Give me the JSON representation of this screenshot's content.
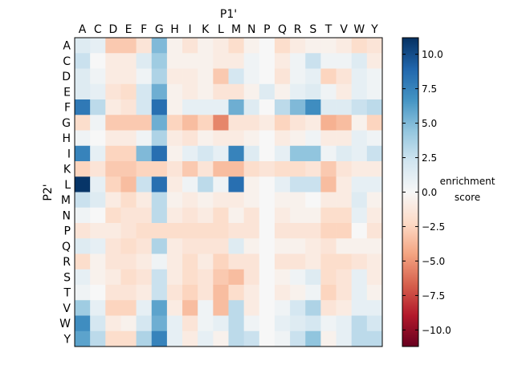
{
  "chart_data": {
    "type": "heatmap",
    "xlabel": "P1'",
    "ylabel": "P2'",
    "x_categories": [
      "A",
      "C",
      "D",
      "E",
      "F",
      "G",
      "H",
      "I",
      "K",
      "L",
      "M",
      "N",
      "P",
      "Q",
      "R",
      "S",
      "T",
      "V",
      "W",
      "Y"
    ],
    "y_categories": [
      "A",
      "C",
      "D",
      "E",
      "F",
      "G",
      "H",
      "I",
      "K",
      "L",
      "M",
      "N",
      "P",
      "Q",
      "R",
      "S",
      "T",
      "V",
      "W",
      "Y"
    ],
    "values": [
      [
        1.5,
        1.0,
        -3.0,
        -3.0,
        -1.5,
        5.0,
        -0.5,
        -1.5,
        -0.5,
        -1.0,
        -2.0,
        -0.5,
        0.0,
        -2.0,
        -1.0,
        -0.5,
        -0.5,
        -1.0,
        -2.0,
        -1.5
      ],
      [
        2.5,
        0.0,
        -1.0,
        -1.0,
        1.5,
        4.0,
        -0.5,
        -0.5,
        -0.5,
        -1.0,
        -1.0,
        0.5,
        0.0,
        -1.0,
        0.5,
        2.5,
        0.5,
        0.5,
        1.5,
        -1.0
      ],
      [
        1.5,
        0.5,
        -1.0,
        -1.0,
        0.5,
        3.5,
        -1.0,
        -1.0,
        -0.5,
        -3.0,
        2.0,
        0.5,
        0.0,
        -1.5,
        0.5,
        1.0,
        -2.5,
        -1.5,
        1.0,
        0.5
      ],
      [
        1.5,
        1.0,
        -1.5,
        -2.0,
        2.0,
        5.5,
        -0.5,
        -1.0,
        -0.5,
        -1.5,
        -1.5,
        -0.5,
        1.5,
        -0.5,
        1.0,
        1.5,
        0.5,
        -1.0,
        1.0,
        0.5
      ],
      [
        8.0,
        3.0,
        -1.0,
        -1.5,
        2.0,
        8.5,
        -0.5,
        1.0,
        1.0,
        1.0,
        5.5,
        1.5,
        0.0,
        3.0,
        5.0,
        7.0,
        1.5,
        1.5,
        2.5,
        3.0
      ],
      [
        -2.0,
        0.5,
        -3.0,
        -3.0,
        -3.0,
        5.5,
        -2.5,
        -3.5,
        -2.5,
        -5.5,
        -1.5,
        -1.5,
        -1.0,
        -2.5,
        -1.5,
        -1.0,
        -4.0,
        -3.5,
        -0.5,
        -2.5
      ],
      [
        0.5,
        0.0,
        -1.0,
        -1.0,
        0.5,
        3.5,
        -1.0,
        -1.5,
        -0.5,
        -1.0,
        -1.0,
        -0.5,
        0.0,
        -1.0,
        -0.5,
        0.5,
        -1.0,
        -1.0,
        1.0,
        0.5
      ],
      [
        7.5,
        1.0,
        -2.5,
        -2.5,
        5.0,
        8.5,
        -0.5,
        1.0,
        2.0,
        1.0,
        7.5,
        1.5,
        0.0,
        1.0,
        4.5,
        4.5,
        0.5,
        1.5,
        1.0,
        2.5
      ],
      [
        -2.5,
        -1.5,
        -3.0,
        -3.0,
        -2.5,
        -2.5,
        -1.5,
        -3.0,
        -1.5,
        -3.5,
        -3.5,
        -2.0,
        -1.5,
        -2.0,
        -2.0,
        -1.5,
        -3.0,
        -1.5,
        -1.0,
        -1.0
      ],
      [
        11.0,
        1.0,
        -2.5,
        -3.5,
        2.5,
        8.5,
        -1.0,
        0.5,
        3.0,
        0.5,
        8.5,
        -0.5,
        0.0,
        1.0,
        2.5,
        2.5,
        -3.5,
        -1.0,
        1.0,
        1.0
      ],
      [
        2.5,
        1.5,
        -1.0,
        -2.0,
        -1.0,
        3.0,
        -0.5,
        -1.0,
        -0.5,
        -1.0,
        -1.0,
        -0.5,
        0.0,
        -0.5,
        -0.5,
        0.0,
        -1.0,
        -1.0,
        1.5,
        -0.5
      ],
      [
        0.5,
        0.0,
        -2.0,
        -1.5,
        -1.5,
        3.0,
        -1.0,
        -1.5,
        -1.0,
        -2.0,
        -0.5,
        -1.5,
        0.0,
        -1.0,
        -0.5,
        -0.5,
        -2.0,
        -2.0,
        1.0,
        -1.0
      ],
      [
        -1.5,
        -1.0,
        -1.0,
        -1.5,
        -2.0,
        -2.0,
        -2.0,
        -2.0,
        -2.0,
        -2.0,
        -1.5,
        -1.5,
        0.0,
        -1.5,
        -1.5,
        -1.5,
        -2.5,
        -2.5,
        0.0,
        -1.5
      ],
      [
        1.5,
        1.0,
        -1.5,
        -2.0,
        -1.5,
        3.5,
        -1.0,
        -1.5,
        -1.5,
        -1.5,
        1.5,
        -0.5,
        0.0,
        -0.5,
        -0.5,
        -1.0,
        -1.5,
        -0.5,
        -0.5,
        -0.5
      ],
      [
        -2.0,
        -0.5,
        -1.5,
        -1.5,
        -1.0,
        0.5,
        -1.0,
        -2.0,
        -1.0,
        -2.5,
        -1.5,
        -1.5,
        0.0,
        -1.5,
        -1.5,
        -1.0,
        -2.0,
        -2.0,
        -1.5,
        -1.0
      ],
      [
        1.0,
        -0.5,
        -1.0,
        -2.0,
        -1.5,
        2.5,
        -1.0,
        -2.0,
        -1.5,
        -3.0,
        -3.5,
        -1.5,
        0.0,
        -0.5,
        0.5,
        1.5,
        -2.0,
        -1.5,
        1.0,
        -1.0
      ],
      [
        0.5,
        0.0,
        -1.5,
        -1.5,
        -1.0,
        2.5,
        -1.5,
        -2.5,
        -1.5,
        -3.5,
        -2.0,
        -1.0,
        0.0,
        -1.0,
        -0.5,
        0.5,
        -2.5,
        -1.5,
        1.0,
        -0.5
      ],
      [
        4.0,
        1.0,
        -2.5,
        -2.5,
        1.0,
        6.0,
        -1.0,
        -3.5,
        0.5,
        -3.5,
        3.0,
        -1.0,
        0.0,
        0.5,
        2.0,
        3.5,
        -1.5,
        -1.0,
        1.0,
        1.0
      ],
      [
        7.0,
        2.0,
        -1.0,
        -0.5,
        2.0,
        5.5,
        1.0,
        -1.5,
        0.5,
        1.0,
        3.0,
        0.5,
        0.0,
        1.0,
        1.5,
        2.0,
        0.5,
        1.0,
        3.0,
        2.0
      ],
      [
        6.0,
        3.0,
        -2.0,
        -2.0,
        3.5,
        7.5,
        1.0,
        -1.0,
        1.0,
        -0.5,
        3.0,
        2.5,
        0.0,
        0.5,
        2.5,
        4.5,
        -0.5,
        1.0,
        3.0,
        3.0
      ]
    ],
    "colorbar": {
      "label_line1": "enrichment",
      "label_line2": "score",
      "vmin": -11.2,
      "vmax": 11.2,
      "ticks": [
        10.0,
        7.5,
        5.0,
        2.5,
        0.0,
        -2.5,
        -5.0,
        -7.5,
        -10.0
      ],
      "tick_labels": [
        "10.0",
        "7.5",
        "5.0",
        "2.5",
        "0.0",
        "−2.5",
        "−5.0",
        "−7.5",
        "−10.0"
      ],
      "colormap": "RdBu"
    }
  }
}
